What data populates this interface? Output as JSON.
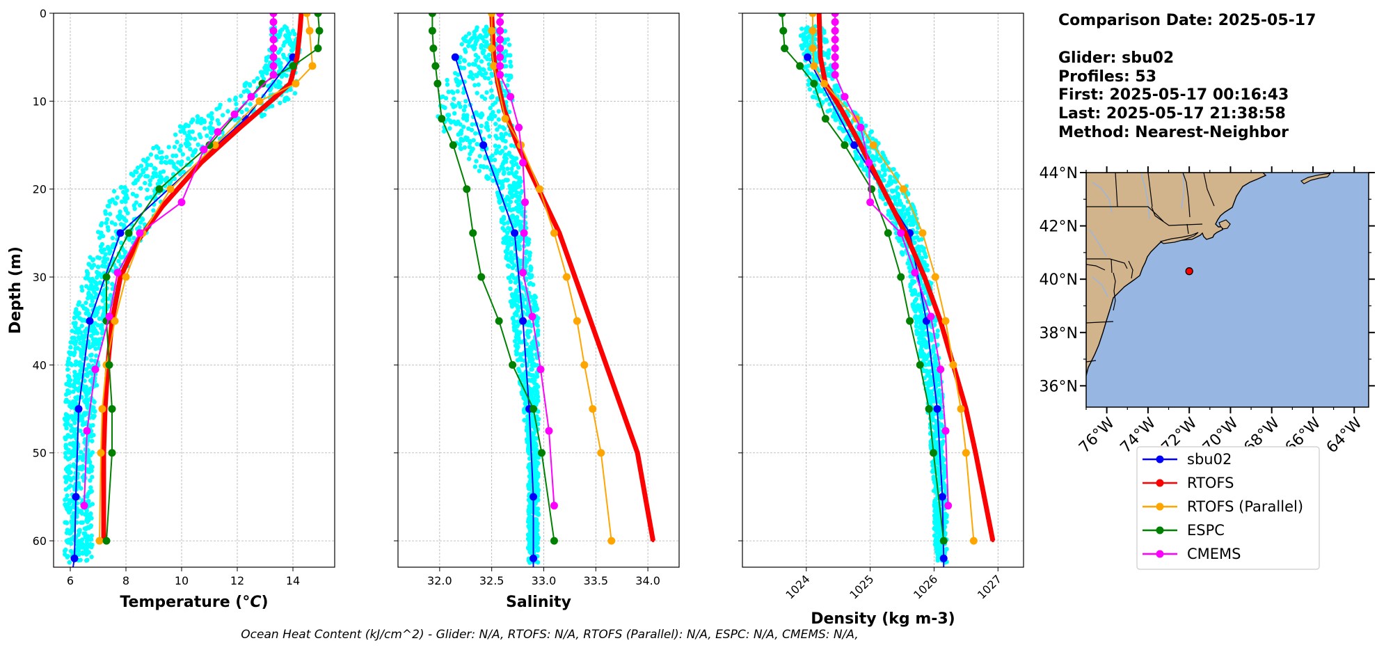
{
  "chart_data": [
    {
      "type": "line",
      "panel": "temperature",
      "xlabel": "Temperature (°C)",
      "ylabel": "Depth (m)",
      "xlim": [
        5.4,
        15.5
      ],
      "ylim": [
        63,
        0
      ],
      "xticks": [
        6,
        8,
        10,
        12,
        14
      ],
      "yticks": [
        0,
        10,
        20,
        30,
        40,
        50,
        60
      ],
      "grid": true,
      "scatter_name": "sbu02",
      "scatter_color": "#00ffff",
      "scatter_envelope": {
        "depth": [
          2,
          6,
          10,
          13,
          17,
          20,
          25,
          30,
          35,
          40,
          45,
          50,
          55,
          60,
          62
        ],
        "lo": [
          13.2,
          13.0,
          11.6,
          9.8,
          8.4,
          7.6,
          6.9,
          6.5,
          6.1,
          5.9,
          5.8,
          5.8,
          5.8,
          5.8,
          5.8
        ],
        "hi": [
          14.3,
          14.2,
          14.1,
          12.0,
          10.4,
          9.5,
          8.8,
          7.8,
          7.3,
          7.0,
          6.9,
          6.8,
          6.8,
          6.8,
          6.8
        ]
      },
      "series": [
        {
          "name": "sbu02",
          "color": "#0000ff",
          "width": 2,
          "marker": true,
          "x": [
            14.0,
            12.3,
            7.8,
            6.7,
            6.3,
            6.2,
            6.15,
            6.1
          ],
          "depth": [
            5,
            12,
            25,
            35,
            45,
            55,
            62,
            63
          ]
        },
        {
          "name": "RTOFS",
          "color": "#ff0000",
          "width": 7,
          "marker": false,
          "x": [
            14.3,
            14.25,
            14.15,
            13.9,
            13.2,
            12.1,
            10.7,
            9.3,
            8.4,
            7.8,
            7.5,
            7.35,
            7.25,
            7.2,
            7.2
          ],
          "depth": [
            0,
            2,
            5,
            8,
            10,
            13,
            17,
            22,
            26,
            30,
            35,
            40,
            45,
            50,
            60
          ]
        },
        {
          "name": "RTOFS (Parallel)",
          "color": "#ffa500",
          "width": 2,
          "marker": true,
          "x": [
            14.5,
            14.6,
            14.7,
            14.1,
            12.8,
            11.2,
            9.6,
            8.6,
            8.0,
            7.6,
            7.3,
            7.15,
            7.1,
            7.05
          ],
          "depth": [
            0,
            2,
            6,
            8,
            10,
            15,
            20,
            25,
            30,
            35,
            40,
            45,
            50,
            60
          ]
        },
        {
          "name": "ESPC",
          "color": "#008000",
          "width": 2,
          "marker": true,
          "x": [
            14.9,
            14.95,
            14.9,
            14.0,
            12.9,
            11.0,
            9.2,
            8.1,
            7.3,
            7.3,
            7.4,
            7.5,
            7.5,
            7.3
          ],
          "depth": [
            0,
            2,
            4,
            6,
            8,
            15,
            20,
            25,
            30,
            35,
            40,
            45,
            50,
            60
          ]
        },
        {
          "name": "CMEMS",
          "color": "#ff00ff",
          "width": 2,
          "marker": true,
          "x": [
            13.3,
            13.3,
            13.3,
            13.3,
            13.3,
            13.3,
            13.3,
            13.3,
            12.5,
            11.9,
            11.3,
            10.8,
            10.0,
            8.5,
            7.7,
            7.4,
            6.9,
            6.6,
            6.5
          ],
          "depth": [
            0,
            1,
            2,
            3,
            4,
            5,
            6,
            7,
            9.5,
            11.5,
            13.5,
            15.5,
            21.5,
            25,
            29.5,
            34.5,
            40.5,
            47.5,
            56
          ]
        }
      ]
    },
    {
      "type": "line",
      "panel": "salinity",
      "xlabel": "Salinity",
      "ylim": [
        63,
        0
      ],
      "xlim": [
        31.6,
        34.3
      ],
      "xticks": [
        32.0,
        32.5,
        33.0,
        33.5,
        34.0
      ],
      "xtick_labels": [
        "32.0",
        "32.5",
        "33.0",
        "33.5",
        "34.0"
      ],
      "grid": true,
      "scatter_name": "sbu02",
      "scatter_color": "#00ffff",
      "scatter_envelope": {
        "depth": [
          2,
          6,
          10,
          13,
          17,
          20,
          25,
          30,
          35,
          40,
          45,
          50,
          55,
          60,
          62
        ],
        "lo": [
          32.25,
          32.15,
          31.95,
          32.0,
          32.3,
          32.55,
          32.6,
          32.65,
          32.7,
          32.75,
          32.8,
          32.85,
          32.85,
          32.85,
          32.85
        ],
        "hi": [
          32.65,
          32.7,
          32.7,
          32.7,
          32.75,
          32.8,
          32.85,
          32.9,
          32.95,
          32.95,
          32.95,
          32.95,
          32.95,
          32.95,
          32.95
        ]
      },
      "series": [
        {
          "name": "sbu02",
          "color": "#0000ff",
          "width": 2,
          "marker": true,
          "x": [
            32.15,
            32.42,
            32.72,
            32.8,
            32.86,
            32.9,
            32.9,
            32.9
          ],
          "depth": [
            5,
            15,
            25,
            35,
            45,
            55,
            62,
            63
          ]
        },
        {
          "name": "RTOFS",
          "color": "#ff0000",
          "width": 7,
          "marker": false,
          "x": [
            32.5,
            32.52,
            32.56,
            32.62,
            32.75,
            32.95,
            33.15,
            33.3,
            33.45,
            33.6,
            33.75,
            33.9,
            34.05
          ],
          "depth": [
            0,
            5,
            8,
            11,
            15,
            20,
            25,
            30,
            35,
            40,
            45,
            50,
            60
          ]
        },
        {
          "name": "RTOFS (Parallel)",
          "color": "#ffa500",
          "width": 2,
          "marker": true,
          "x": [
            32.5,
            32.5,
            32.5,
            32.52,
            32.63,
            32.78,
            32.96,
            33.1,
            33.22,
            33.32,
            33.39,
            33.47,
            33.55,
            33.65
          ],
          "depth": [
            0,
            2,
            4,
            6,
            12,
            15,
            20,
            25,
            30,
            35,
            40,
            45,
            50,
            60
          ]
        },
        {
          "name": "ESPC",
          "color": "#008000",
          "width": 2,
          "marker": true,
          "x": [
            31.93,
            31.93,
            31.94,
            31.96,
            31.98,
            32.02,
            32.13,
            32.26,
            32.32,
            32.4,
            32.57,
            32.7,
            32.9,
            32.98,
            33.1
          ],
          "depth": [
            0,
            2,
            4,
            6,
            8,
            12,
            15,
            20,
            25,
            30,
            35,
            40,
            45,
            50,
            60
          ]
        },
        {
          "name": "CMEMS",
          "color": "#ff00ff",
          "width": 2,
          "marker": true,
          "x": [
            32.58,
            32.58,
            32.58,
            32.58,
            32.58,
            32.58,
            32.58,
            32.58,
            32.68,
            32.76,
            32.8,
            32.82,
            32.81,
            32.8,
            32.89,
            32.97,
            33.05,
            33.1
          ],
          "depth": [
            0,
            1,
            2,
            3,
            4,
            5,
            6,
            7,
            9.5,
            13,
            17,
            21.5,
            25,
            29.5,
            34.5,
            40.5,
            47.5,
            56
          ]
        }
      ]
    },
    {
      "type": "line",
      "panel": "density",
      "xlabel": "Density (kg m-3)",
      "ylim": [
        63,
        0
      ],
      "xlim": [
        1023.0,
        1027.4
      ],
      "xticks": [
        1024,
        1025,
        1026,
        1027
      ],
      "xtick_labels": [
        "1024",
        "1025",
        "1026",
        "1027"
      ],
      "xtick_rotation": 45,
      "grid": true,
      "scatter_name": "sbu02",
      "scatter_color": "#00ffff",
      "scatter_envelope": {
        "depth": [
          2,
          6,
          10,
          13,
          17,
          20,
          25,
          30,
          35,
          40,
          45,
          50,
          55,
          60,
          62
        ],
        "lo": [
          1023.9,
          1023.95,
          1024.1,
          1024.5,
          1024.8,
          1025.1,
          1025.4,
          1025.6,
          1025.7,
          1025.8,
          1025.9,
          1025.95,
          1026.0,
          1026.0,
          1026.05
        ],
        "hi": [
          1024.3,
          1024.4,
          1024.6,
          1025.0,
          1025.3,
          1025.6,
          1025.8,
          1025.95,
          1026.05,
          1026.1,
          1026.15,
          1026.15,
          1026.2,
          1026.2,
          1026.2
        ]
      },
      "series": [
        {
          "name": "sbu02",
          "color": "#0000ff",
          "width": 2,
          "marker": true,
          "x": [
            1024.02,
            1024.75,
            1025.62,
            1025.88,
            1026.05,
            1026.13,
            1026.15,
            1026.15
          ],
          "depth": [
            5,
            15,
            25,
            35,
            45,
            55,
            62,
            63
          ]
        },
        {
          "name": "RTOFS",
          "color": "#ff0000",
          "width": 7,
          "marker": false,
          "x": [
            1024.2,
            1024.22,
            1024.3,
            1024.55,
            1024.85,
            1025.2,
            1025.55,
            1025.85,
            1026.1,
            1026.3,
            1026.5,
            1026.65,
            1026.92
          ],
          "depth": [
            0,
            5,
            8,
            11,
            15,
            20,
            25,
            30,
            35,
            40,
            45,
            50,
            60
          ]
        },
        {
          "name": "RTOFS (Parallel)",
          "color": "#ffa500",
          "width": 2,
          "marker": true,
          "x": [
            1024.1,
            1024.1,
            1024.1,
            1024.12,
            1024.28,
            1024.78,
            1025.05,
            1025.52,
            1025.82,
            1026.02,
            1026.18,
            1026.3,
            1026.42,
            1026.5,
            1026.62
          ],
          "depth": [
            0,
            2,
            4,
            6,
            8,
            12,
            15,
            20,
            25,
            30,
            35,
            40,
            45,
            50,
            60
          ]
        },
        {
          "name": "ESPC",
          "color": "#008000",
          "width": 2,
          "marker": true,
          "x": [
            1023.62,
            1023.64,
            1023.66,
            1023.9,
            1024.12,
            1024.3,
            1024.6,
            1025.02,
            1025.28,
            1025.48,
            1025.62,
            1025.78,
            1025.92,
            1025.99,
            1026.15
          ],
          "depth": [
            0,
            2,
            4,
            6,
            8,
            12,
            15,
            20,
            25,
            30,
            35,
            40,
            45,
            50,
            60
          ]
        },
        {
          "name": "CMEMS",
          "color": "#ff00ff",
          "width": 2,
          "marker": true,
          "x": [
            1024.45,
            1024.45,
            1024.45,
            1024.45,
            1024.45,
            1024.45,
            1024.45,
            1024.45,
            1024.6,
            1024.85,
            1024.98,
            1025.0,
            1025.48,
            1025.7,
            1025.95,
            1026.1,
            1026.18,
            1026.22
          ],
          "depth": [
            0,
            1,
            2,
            3,
            4,
            5,
            6,
            7,
            9.5,
            13,
            17,
            21.5,
            25,
            29.5,
            34.5,
            40.5,
            47.5,
            56
          ]
        }
      ]
    },
    {
      "type": "map",
      "panel": "map",
      "xlim": [
        -77,
        -63.3
      ],
      "ylim": [
        35.2,
        44
      ],
      "xticks": [
        -76,
        -74,
        -72,
        -70,
        -68,
        -66,
        -64
      ],
      "xtick_labels": [
        "76°W",
        "74°W",
        "72°W",
        "70°W",
        "68°W",
        "66°W",
        "64°W"
      ],
      "yticks": [
        36,
        38,
        40,
        42,
        44
      ],
      "ytick_labels": [
        "36°N",
        "38°N",
        "40°N",
        "42°N",
        "44°N"
      ],
      "land_color": "#d2b48c",
      "ocean_color": "#97b6e1",
      "glider_position": {
        "lon": -72.0,
        "lat": 40.3
      },
      "glider_color": "#ff0000"
    }
  ],
  "info": {
    "comparison_date": "Comparison Date: 2025-05-17",
    "glider": "Glider: sbu02",
    "profiles": "Profiles: 53",
    "first": "First: 2025-05-17 00:16:43",
    "last": "Last: 2025-05-17 21:38:58",
    "method": "Method: Nearest-Neighbor"
  },
  "legend": {
    "placement": "below-map",
    "entries": [
      {
        "label": "sbu02",
        "color": "#0000ff"
      },
      {
        "label": "RTOFS",
        "color": "#ff0000"
      },
      {
        "label": "RTOFS (Parallel)",
        "color": "#ffa500"
      },
      {
        "label": "ESPC",
        "color": "#008000"
      },
      {
        "label": "CMEMS",
        "color": "#ff00ff"
      }
    ]
  },
  "footer": {
    "ohc_text": "Ocean Heat Content (kJ/cm^2) - Glider: N/A,  RTOFS: N/A,  RTOFS (Parallel): N/A,  ESPC: N/A,  CMEMS: N/A,"
  }
}
